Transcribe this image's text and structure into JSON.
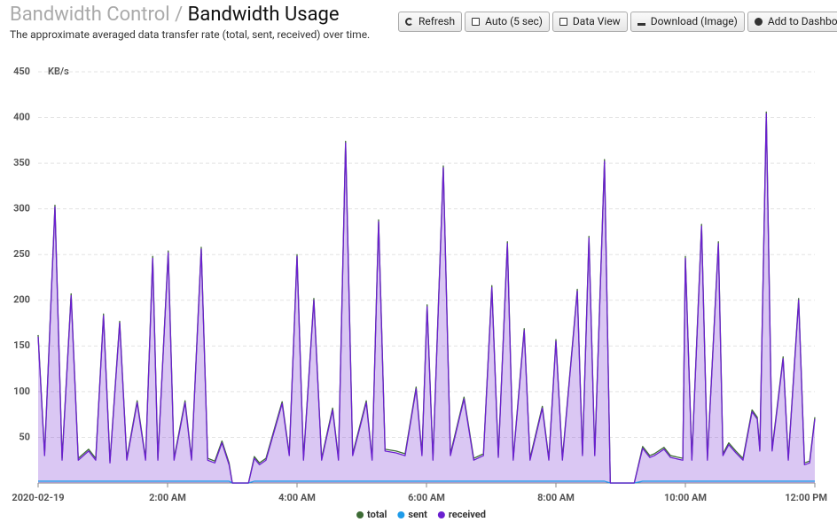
{
  "header": {
    "breadcrumb": "Bandwidth Control",
    "separator": "/",
    "title": "Bandwidth Usage",
    "subtitle": "The approximate averaged data transfer rate (total, sent, received) over time."
  },
  "toolbar": {
    "buttons": [
      "Refresh",
      "Auto (5 sec)",
      "Data View",
      "Download (Image)",
      "Add to Dashboard"
    ]
  },
  "chart_data": {
    "type": "area",
    "y_unit_label": "KB/s",
    "x": [
      0,
      0.1,
      0.26,
      0.37,
      0.51,
      0.62,
      0.78,
      0.89,
      1.01,
      1.11,
      1.26,
      1.37,
      1.53,
      1.66,
      1.77,
      1.85,
      2.01,
      2.1,
      2.27,
      2.37,
      2.52,
      2.62,
      2.73,
      2.84,
      2.95,
      3.0,
      3.25,
      3.34,
      3.42,
      3.52,
      3.77,
      3.88,
      4.0,
      4.1,
      4.26,
      4.38,
      4.55,
      4.64,
      4.75,
      4.86,
      5.07,
      5.16,
      5.26,
      5.36,
      5.53,
      5.67,
      5.84,
      5.93,
      6.01,
      6.1,
      6.26,
      6.37,
      6.58,
      6.73,
      6.88,
      7.01,
      7.11,
      7.25,
      7.34,
      7.51,
      7.6,
      7.79,
      7.89,
      8.0,
      8.1,
      8.33,
      8.41,
      8.51,
      8.6,
      8.75,
      8.84,
      9.21,
      9.34,
      9.45,
      9.52,
      9.67,
      9.77,
      9.96,
      10.0,
      10.1,
      10.25,
      10.34,
      10.51,
      10.58,
      10.67,
      10.78,
      10.89,
      11.03,
      11.11,
      11.15,
      11.25,
      11.34,
      11.51,
      11.59,
      11.75,
      11.84,
      11.92,
      12.0
    ],
    "series": [
      {
        "name": "total",
        "color": "#3d6b35",
        "fill": false,
        "values": [
          162,
          32,
          304,
          27,
          207,
          27,
          37,
          27,
          185,
          24,
          177,
          27,
          90,
          27,
          248,
          27,
          254,
          27,
          90,
          27,
          258,
          27,
          24,
          46,
          22,
          0,
          0,
          29,
          22,
          27,
          89,
          32,
          250,
          27,
          202,
          27,
          82,
          27,
          374,
          32,
          90,
          27,
          288,
          37,
          35,
          32,
          105,
          32,
          195,
          27,
          347,
          32,
          94,
          27,
          32,
          216,
          30,
          264,
          27,
          169,
          27,
          84,
          27,
          157,
          27,
          212,
          32,
          270,
          32,
          354,
          0,
          0,
          40,
          30,
          32,
          39,
          30,
          27,
          248,
          27,
          283,
          27,
          264,
          32,
          44,
          35,
          27,
          80,
          72,
          37,
          406,
          37,
          138,
          27,
          202,
          22,
          24,
          72
        ]
      },
      {
        "name": "sent",
        "color": "#1e9be9",
        "fill": false,
        "values": [
          2,
          2,
          2,
          2,
          2,
          2,
          2,
          2,
          2,
          2,
          2,
          2,
          2,
          2,
          2,
          2,
          2,
          2,
          2,
          2,
          2,
          2,
          2,
          2,
          2,
          0,
          0,
          2,
          2,
          2,
          2,
          2,
          2,
          2,
          2,
          2,
          2,
          2,
          2,
          2,
          2,
          2,
          2,
          2,
          2,
          2,
          2,
          2,
          2,
          2,
          2,
          2,
          2,
          2,
          2,
          2,
          2,
          2,
          2,
          2,
          2,
          2,
          2,
          2,
          2,
          2,
          2,
          2,
          2,
          2,
          0,
          0,
          2,
          2,
          2,
          2,
          2,
          2,
          2,
          2,
          2,
          2,
          2,
          2,
          2,
          2,
          2,
          2,
          2,
          2,
          2,
          2,
          2,
          2,
          2,
          2,
          2,
          2
        ]
      },
      {
        "name": "received",
        "color": "#6a1fd0",
        "fill": true,
        "values": [
          160,
          30,
          302,
          25,
          205,
          25,
          35,
          25,
          183,
          22,
          175,
          25,
          88,
          25,
          246,
          25,
          252,
          25,
          88,
          25,
          256,
          25,
          22,
          44,
          20,
          0,
          0,
          27,
          20,
          25,
          87,
          30,
          248,
          25,
          200,
          25,
          80,
          25,
          372,
          30,
          88,
          25,
          286,
          35,
          33,
          30,
          103,
          30,
          193,
          25,
          345,
          30,
          92,
          25,
          30,
          214,
          28,
          262,
          25,
          167,
          25,
          82,
          25,
          155,
          25,
          210,
          30,
          268,
          30,
          352,
          0,
          0,
          38,
          28,
          30,
          37,
          28,
          25,
          246,
          25,
          281,
          25,
          262,
          30,
          42,
          33,
          25,
          78,
          70,
          35,
          404,
          35,
          136,
          25,
          200,
          20,
          22,
          70
        ]
      }
    ],
    "xlim": [
      0,
      12
    ],
    "xticks": [
      {
        "value": 0,
        "label": "2020-02-19"
      },
      {
        "value": 2,
        "label": "2:00 AM"
      },
      {
        "value": 4,
        "label": "4:00 AM"
      },
      {
        "value": 6,
        "label": "6:00 AM"
      },
      {
        "value": 8,
        "label": "8:00 AM"
      },
      {
        "value": 10,
        "label": "10:00 AM"
      },
      {
        "value": 12,
        "label": "12:00 PM"
      }
    ],
    "ylim": [
      0,
      450
    ],
    "yticks": [
      50,
      100,
      150,
      200,
      250,
      300,
      350,
      400,
      450
    ],
    "grid": true,
    "legend": "bottom"
  }
}
